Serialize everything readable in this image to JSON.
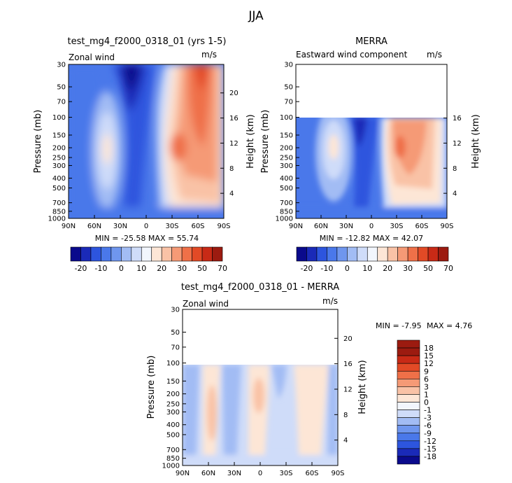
{
  "title": "JJA",
  "panels": [
    {
      "title": "test_mg4_f2000_0318_01 (yrs 1-5)",
      "left_label": "Zonal wind",
      "right_label": "m/s",
      "ylabel": "Pressure (mb)",
      "y2label": "Height (km)",
      "stats": "MIN = -25.58   MAX = 55.74"
    },
    {
      "title": "MERRA",
      "left_label": "Eastward wind component",
      "right_label": "m/s",
      "ylabel": "Pressure (mb)",
      "y2label": "Height (km)",
      "stats": "MIN = -12.82   MAX = 42.07"
    },
    {
      "title": "test_mg4_f2000_0318_01 - MERRA",
      "left_label": "Zonal wind",
      "right_label": "m/s",
      "ylabel": "Pressure (mb)",
      "y2label": "Height (km)",
      "stats_min": "MIN =   -7.95",
      "stats_max": "MAX =    4.76"
    }
  ],
  "colorbar_full": {
    "labels": [
      "-20",
      "-10",
      "0",
      "10",
      "20",
      "30",
      "50",
      "70"
    ],
    "colors": [
      "#0a0a8c",
      "#1a2ab8",
      "#2d55de",
      "#4a78ea",
      "#6f96ee",
      "#a2bcf4",
      "#cfdcf9",
      "#f2f6fd",
      "#fde6d6",
      "#f9c2a6",
      "#f59a76",
      "#ef7048",
      "#e24a26",
      "#c82a16",
      "#9c1b10"
    ]
  },
  "colorbar_diff": {
    "labels": [
      "18",
      "15",
      "12",
      "9",
      "6",
      "3",
      "1",
      "0",
      "-1",
      "-3",
      "-6",
      "-9",
      "-12",
      "-15",
      "-18"
    ],
    "colors": [
      "#9c1b10",
      "#c82a16",
      "#e24a26",
      "#ef7048",
      "#f59a76",
      "#f9c2a6",
      "#fde6d6",
      "#f2f6fd",
      "#cfdcf9",
      "#a2bcf4",
      "#6f96ee",
      "#4a78ea",
      "#2d55de",
      "#1a2ab8",
      "#0a0a8c"
    ]
  },
  "chart_data": [
    {
      "type": "heatmap",
      "title": "test_mg4_f2000_0318_01 (yrs 1-5)",
      "subtitle": "Zonal wind",
      "units": "m/s",
      "xlabel": "",
      "ylabel": "Pressure (mb)",
      "y2label": "Height (km)",
      "x_ticks": [
        "90N",
        "60N",
        "30N",
        "0",
        "30S",
        "60S",
        "90S"
      ],
      "y_ticks": [
        "30",
        "50",
        "70",
        "100",
        "150",
        "200",
        "250",
        "300",
        "400",
        "500",
        "700",
        "850",
        "1000"
      ],
      "y2_ticks": [
        "4",
        "8",
        "12",
        "16",
        "20"
      ],
      "y_scale": "log",
      "min": -25.58,
      "max": 55.74,
      "levels": [
        -25,
        -20,
        -15,
        -10,
        -5,
        0,
        5,
        10,
        15,
        20,
        25,
        30,
        40,
        50,
        60,
        70
      ]
    },
    {
      "type": "heatmap",
      "title": "MERRA",
      "subtitle": "Eastward wind component",
      "units": "m/s",
      "xlabel": "",
      "ylabel": "Pressure (mb)",
      "y2label": "Height (km)",
      "x_ticks": [
        "90N",
        "60N",
        "30N",
        "0",
        "30S",
        "60S",
        "90S"
      ],
      "y_ticks": [
        "30",
        "50",
        "70",
        "100",
        "150",
        "200",
        "250",
        "300",
        "400",
        "500",
        "700",
        "850",
        "1000"
      ],
      "y2_ticks": [
        "4",
        "8",
        "12",
        "16"
      ],
      "y_scale": "log",
      "min": -12.82,
      "max": 42.07,
      "data_top_pressure": 100
    },
    {
      "type": "heatmap",
      "title": "test_mg4_f2000_0318_01 - MERRA",
      "subtitle": "Zonal wind",
      "units": "m/s",
      "xlabel": "",
      "ylabel": "Pressure (mb)",
      "y2label": "Height (km)",
      "x_ticks": [
        "90N",
        "60N",
        "30N",
        "0",
        "30S",
        "60S",
        "90S"
      ],
      "y_ticks": [
        "30",
        "50",
        "70",
        "100",
        "150",
        "200",
        "250",
        "300",
        "400",
        "500",
        "700",
        "850",
        "1000"
      ],
      "y2_ticks": [
        "4",
        "8",
        "12",
        "16",
        "20"
      ],
      "y_scale": "log",
      "min": -7.95,
      "max": 4.76,
      "data_top_pressure": 100
    }
  ]
}
